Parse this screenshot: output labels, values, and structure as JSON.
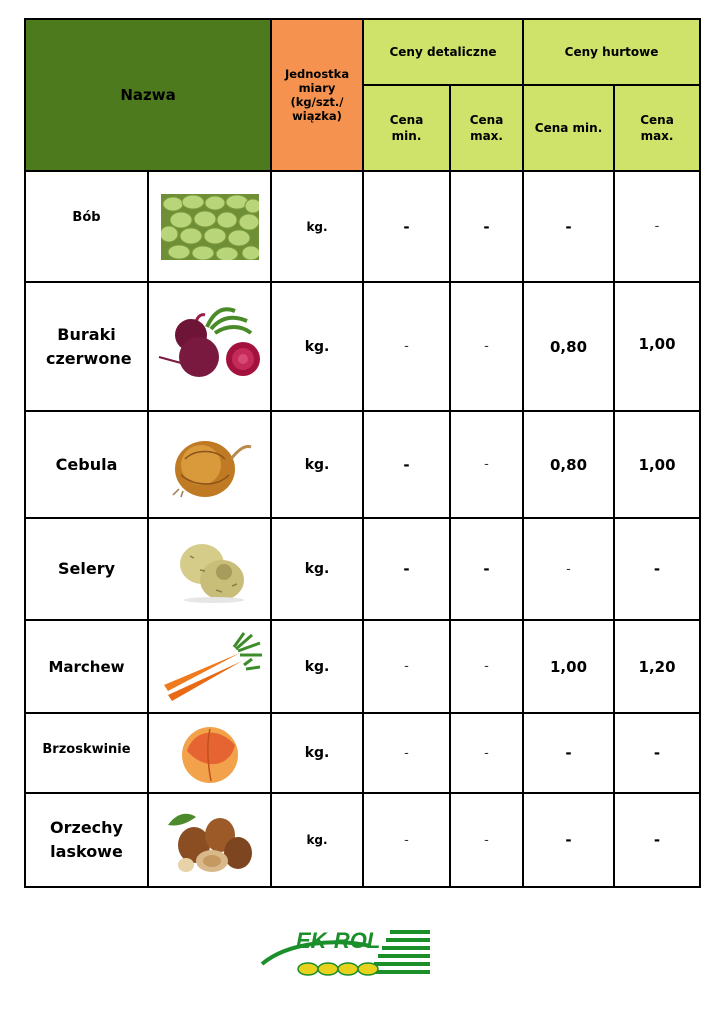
{
  "header": {
    "name": "Nazwa",
    "unit": "Jednostka miary (kg/szt./ wiązka)",
    "retail": "Ceny detaliczne",
    "wholesale": "Ceny hurtowe",
    "retail_min": "Cena min.",
    "retail_max": "Cena max.",
    "wholesale_min": "Cena min.",
    "wholesale_max": "Cena max."
  },
  "rows": [
    {
      "name": "Bób",
      "image_icon": "broad-beans-icon",
      "unit": "kg.",
      "retail_min": "-",
      "retail_max": "-",
      "wholesale_min": "-",
      "wholesale_max": "-"
    },
    {
      "name": "Buraki czerwone",
      "image_icon": "beetroot-icon",
      "unit": "kg.",
      "retail_min": "-",
      "retail_max": "-",
      "wholesale_min": "0,80",
      "wholesale_max": "1,00"
    },
    {
      "name": "Cebula",
      "image_icon": "onion-icon",
      "unit": "kg.",
      "retail_min": "-",
      "retail_max": "-",
      "wholesale_min": "0,80",
      "wholesale_max": "1,00"
    },
    {
      "name": "Selery",
      "image_icon": "celeriac-icon",
      "unit": "kg.",
      "retail_min": "-",
      "retail_max": "-",
      "wholesale_min": "-",
      "wholesale_max": "-"
    },
    {
      "name": "Marchew",
      "image_icon": "carrot-icon",
      "unit": "kg.",
      "retail_min": "-",
      "retail_max": "-",
      "wholesale_min": "1,00",
      "wholesale_max": "1,20"
    },
    {
      "name": "Brzoskwinie",
      "image_icon": "peach-icon",
      "unit": "kg.",
      "retail_min": "-",
      "retail_max": "-",
      "wholesale_min": "-",
      "wholesale_max": "-"
    },
    {
      "name": "Orzechy laskowe",
      "image_icon": "hazelnuts-icon",
      "unit": "kg.",
      "retail_min": "-",
      "retail_max": "-",
      "wholesale_min": "-",
      "wholesale_max": "-"
    }
  ],
  "logo": {
    "text": "EK-ROL",
    "icon": "ek-rol-logo"
  },
  "colors": {
    "name_header": "#4d7a1c",
    "unit_header": "#f5924f",
    "price_header": "#cfe36b",
    "logo_green": "#1a8f2a",
    "logo_yellow": "#e8d21e"
  }
}
